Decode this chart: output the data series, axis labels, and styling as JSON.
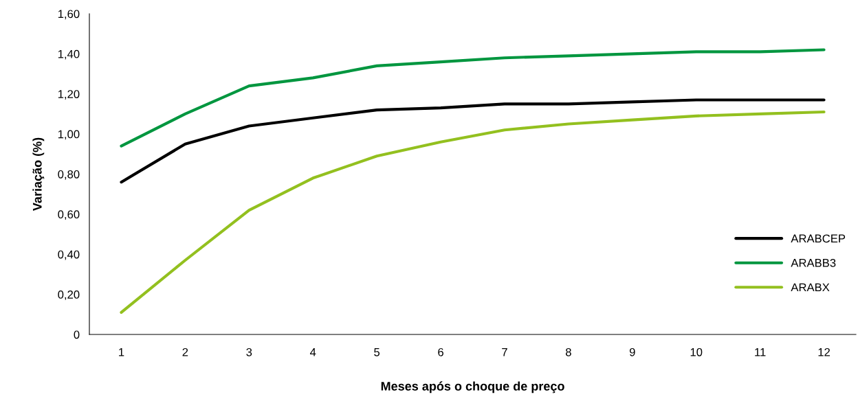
{
  "chart_data": {
    "type": "line",
    "xlabel": "Meses após o choque de preço",
    "ylabel": "Variação (%)",
    "categories": [
      "1",
      "2",
      "3",
      "4",
      "5",
      "6",
      "7",
      "8",
      "9",
      "10",
      "11",
      "12"
    ],
    "series": [
      {
        "name": "ARABCEP",
        "color": "#000000",
        "values": [
          0.76,
          0.95,
          1.04,
          1.08,
          1.12,
          1.13,
          1.15,
          1.15,
          1.16,
          1.17,
          1.17,
          1.17
        ]
      },
      {
        "name": "ARABB3",
        "color": "#00963f",
        "values": [
          0.94,
          1.1,
          1.24,
          1.28,
          1.34,
          1.36,
          1.38,
          1.39,
          1.4,
          1.41,
          1.41,
          1.42
        ]
      },
      {
        "name": "ARABX",
        "color": "#93c01f",
        "values": [
          0.11,
          0.37,
          0.62,
          0.78,
          0.89,
          0.96,
          1.02,
          1.05,
          1.07,
          1.09,
          1.1,
          1.11
        ]
      }
    ],
    "ylim": [
      0,
      1.6
    ],
    "yticks": [
      {
        "value": 0,
        "label": "0"
      },
      {
        "value": 0.2,
        "label": "0,20"
      },
      {
        "value": 0.4,
        "label": "0,40"
      },
      {
        "value": 0.6,
        "label": "0,60"
      },
      {
        "value": 0.8,
        "label": "0,80"
      },
      {
        "value": 1.0,
        "label": "1,00"
      },
      {
        "value": 1.2,
        "label": "1,20"
      },
      {
        "value": 1.4,
        "label": "1,40"
      },
      {
        "value": 1.6,
        "label": "1,60"
      }
    ],
    "grid": false,
    "legend": "right",
    "marker": "none",
    "line_style": "solid"
  }
}
